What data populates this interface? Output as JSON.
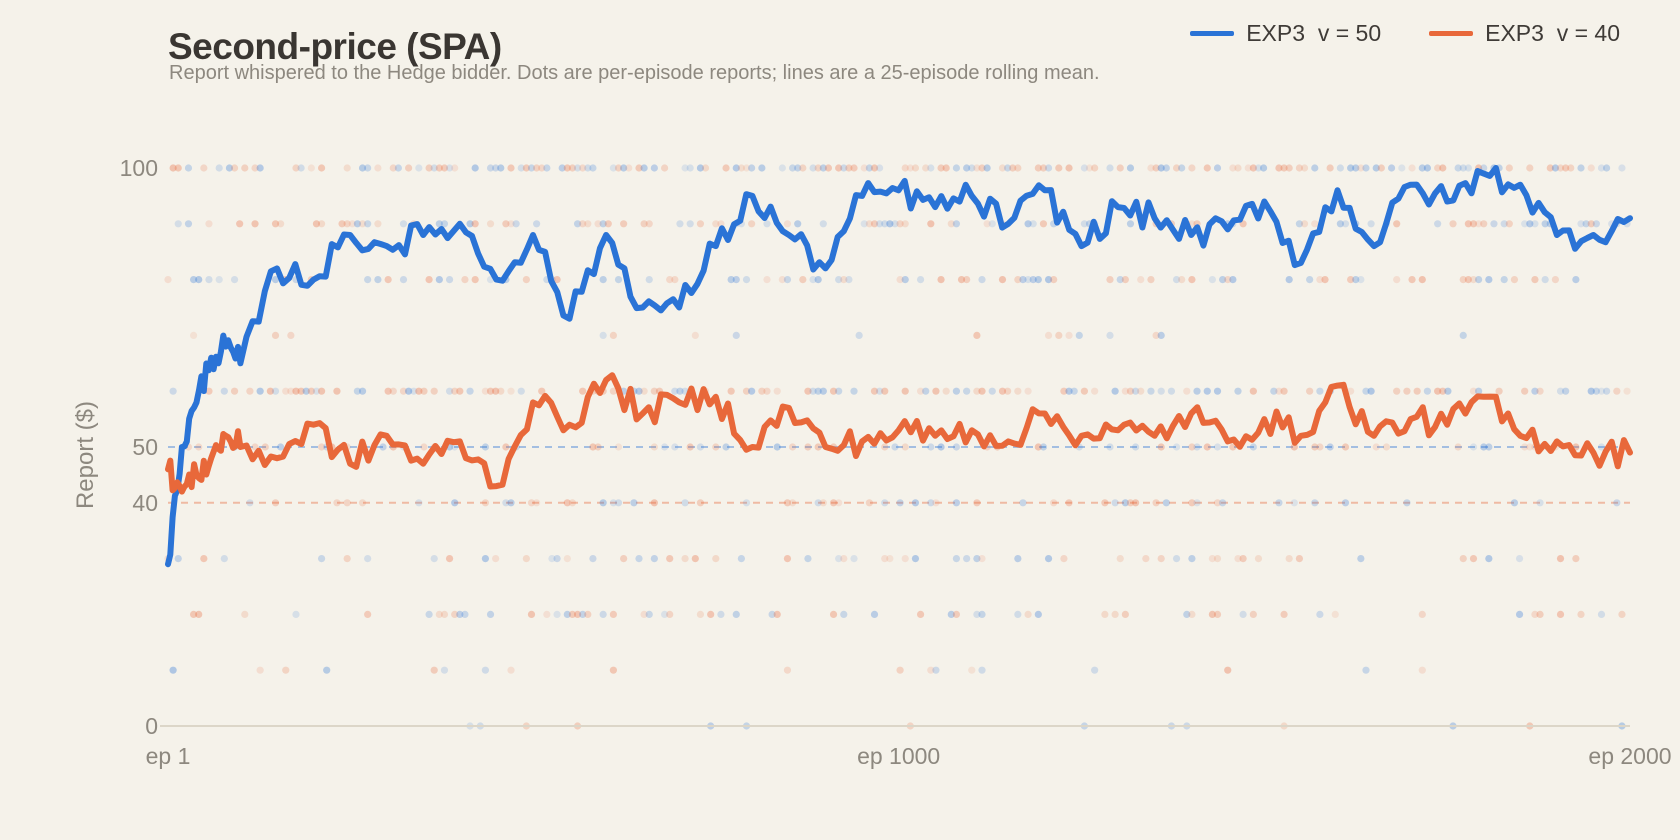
{
  "title": "Second-price (SPA)",
  "subtitle": "Report whispered to the Hedge bidder. Dots are per-episode reports; lines are a 25-episode rolling mean.",
  "chart_data": {
    "type": "line",
    "title": "Second-price (SPA)",
    "ylabel": "Report ($)",
    "xlim": [
      1,
      2000
    ],
    "ylim": [
      0,
      100
    ],
    "x_ticks": [
      {
        "value": 1,
        "label": "ep 1"
      },
      {
        "value": 1000,
        "label": "ep 1000"
      },
      {
        "value": 2000,
        "label": "ep 2000"
      }
    ],
    "y_ticks": [
      {
        "value": 0,
        "label": "0"
      },
      {
        "value": 40,
        "label": "40"
      },
      {
        "value": 50,
        "label": "50"
      },
      {
        "value": 100,
        "label": "100"
      }
    ],
    "reference_lines": [
      {
        "y": 50,
        "color": "#2a73d6"
      },
      {
        "y": 40,
        "color": "#e8683a"
      }
    ],
    "dot_levels": [
      0,
      10,
      20,
      30,
      40,
      50,
      60,
      70,
      80,
      90,
      100
    ],
    "legend_position": "top-right",
    "series": [
      {
        "name": "EXP3  v = 50",
        "color": "#2a73d6",
        "x": [
          1,
          20,
          40,
          60,
          80,
          100,
          150,
          200,
          250,
          300,
          350,
          400,
          450,
          500,
          550,
          600,
          650,
          700,
          750,
          800,
          850,
          900,
          950,
          1000,
          1050,
          1100,
          1150,
          1200,
          1250,
          1300,
          1350,
          1400,
          1450,
          1500,
          1550,
          1600,
          1650,
          1700,
          1750,
          1800,
          1850,
          1900,
          1950,
          2000
        ],
        "values": [
          29,
          50,
          58,
          66,
          68,
          65,
          82,
          80,
          88,
          86,
          88,
          90,
          80,
          88,
          73,
          88,
          75,
          75,
          86,
          95,
          88,
          82,
          95,
          96,
          93,
          95,
          90,
          96,
          86,
          93,
          91,
          88,
          89,
          94,
          83,
          96,
          86,
          97,
          94,
          99,
          97,
          88,
          88,
          91
        ]
      },
      {
        "name": "EXP3  v = 40",
        "color": "#e8683a",
        "x": [
          1,
          20,
          40,
          60,
          80,
          100,
          150,
          200,
          250,
          300,
          350,
          400,
          450,
          500,
          550,
          600,
          650,
          700,
          750,
          800,
          850,
          900,
          950,
          1000,
          1050,
          1100,
          1150,
          1200,
          1250,
          1300,
          1350,
          1400,
          1450,
          1500,
          1550,
          1600,
          1650,
          1700,
          1750,
          1800,
          1850,
          1900,
          1950,
          2000
        ],
        "values": [
          46,
          42,
          45,
          48,
          52,
          50,
          48,
          54,
          47,
          52,
          47,
          51,
          43,
          58,
          54,
          62,
          56,
          58,
          59,
          50,
          57,
          50,
          51,
          53,
          52,
          53,
          51,
          56,
          52,
          53,
          52,
          56,
          51,
          55,
          52,
          61,
          52,
          55,
          54,
          59,
          52,
          51,
          49,
          49
        ]
      }
    ]
  }
}
